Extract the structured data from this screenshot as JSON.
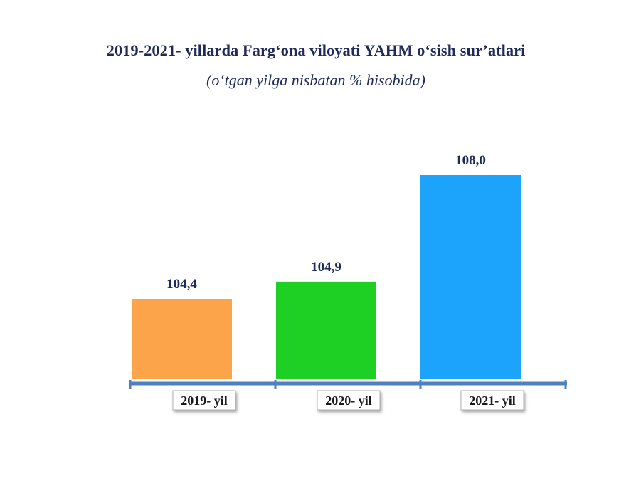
{
  "chart_data": {
    "type": "bar",
    "title": "2019-2021- yillarda Farg‘ona viloyati YAHM o‘sish sur’atlari",
    "subtitle": "(o‘tgan yilga nisbatan % hisobida)",
    "categories": [
      "2019- yil",
      "2020- yil",
      "2021- yil"
    ],
    "values": [
      104.4,
      104.9,
      108.0
    ],
    "value_labels": [
      "104,4",
      "104,9",
      "108,0"
    ],
    "colors": [
      "#fba44a",
      "#1ecf24",
      "#1ca4fd"
    ],
    "axis_color": "#4f7fc0",
    "grid": false,
    "legend": "none"
  }
}
